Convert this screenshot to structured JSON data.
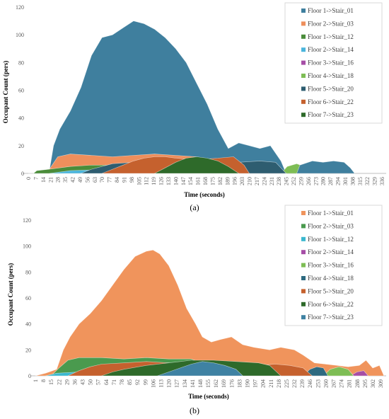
{
  "chart_data": [
    {
      "type": "area",
      "caption": "(a)",
      "xlabel": "Time (seconds)",
      "ylabel": "Occupant Count (pers)",
      "ylim": [
        0,
        120
      ],
      "yticks": [
        0,
        20,
        40,
        60,
        80,
        100,
        120
      ],
      "xlim": [
        0,
        340
      ],
      "xticks": [
        0,
        7,
        14,
        21,
        28,
        35,
        42,
        49,
        56,
        63,
        70,
        77,
        84,
        91,
        98,
        105,
        112,
        119,
        126,
        133,
        140,
        147,
        154,
        161,
        168,
        175,
        182,
        189,
        196,
        203,
        210,
        217,
        224,
        231,
        238,
        245,
        252,
        259,
        266,
        273,
        280,
        287,
        294,
        301,
        308,
        315,
        322,
        329,
        336
      ],
      "legend_position": "top-right",
      "series": [
        {
          "name": "Floor 1->Stair_01",
          "color": "#3f7f9e",
          "points": [
            [
              0,
              0
            ],
            [
              14,
              0
            ],
            [
              20,
              2
            ],
            [
              24,
              20
            ],
            [
              30,
              32
            ],
            [
              40,
              45
            ],
            [
              50,
              62
            ],
            [
              60,
              85
            ],
            [
              70,
              98
            ],
            [
              80,
              100
            ],
            [
              90,
              105
            ],
            [
              100,
              110
            ],
            [
              110,
              108
            ],
            [
              120,
              104
            ],
            [
              130,
              98
            ],
            [
              140,
              90
            ],
            [
              150,
              80
            ],
            [
              160,
              65
            ],
            [
              170,
              50
            ],
            [
              180,
              32
            ],
            [
              190,
              18
            ],
            [
              200,
              22
            ],
            [
              210,
              20
            ],
            [
              220,
              18
            ],
            [
              230,
              20
            ],
            [
              240,
              9
            ],
            [
              245,
              0
            ]
          ]
        },
        {
          "name": "Floor 2->Stair_03",
          "color": "#ee8f5c",
          "points": [
            [
              10,
              0
            ],
            [
              20,
              3
            ],
            [
              28,
              12
            ],
            [
              40,
              14
            ],
            [
              60,
              13
            ],
            [
              80,
              12
            ],
            [
              100,
              13
            ],
            [
              120,
              14
            ],
            [
              140,
              13
            ],
            [
              160,
              12
            ],
            [
              175,
              10
            ],
            [
              185,
              6
            ],
            [
              190,
              0
            ]
          ]
        },
        {
          "name": "Floor 1->Stair_12",
          "color": "#4a8c3a",
          "points": [
            [
              5,
              0
            ],
            [
              8,
              2
            ],
            [
              20,
              3
            ],
            [
              40,
              5
            ],
            [
              60,
              6
            ],
            [
              80,
              6
            ],
            [
              100,
              7
            ],
            [
              120,
              6
            ],
            [
              140,
              6
            ],
            [
              160,
              5
            ],
            [
              175,
              3
            ],
            [
              185,
              0
            ]
          ]
        },
        {
          "name": "Floor 2->Stair_14",
          "color": "#4bb5dc",
          "points": [
            [
              20,
              0
            ],
            [
              40,
              2
            ],
            [
              80,
              3
            ],
            [
              120,
              3
            ],
            [
              160,
              3
            ],
            [
              200,
              2
            ],
            [
              220,
              0
            ]
          ]
        },
        {
          "name": "Floor  3->Stair_16",
          "color": "#a64ea6",
          "points": [
            [
              255,
              0
            ],
            [
              262,
              4
            ],
            [
              270,
              8
            ],
            [
              278,
              6
            ],
            [
              284,
              0
            ]
          ]
        },
        {
          "name": "Floor 4->Stair_18",
          "color": "#7ebd55",
          "points": [
            [
              240,
              0
            ],
            [
              246,
              5
            ],
            [
              255,
              7
            ],
            [
              262,
              5
            ],
            [
              266,
              0
            ]
          ]
        },
        {
          "name": "Floor 5->Stair_20",
          "color": "#2e5d70",
          "points": [
            [
              50,
              0
            ],
            [
              60,
              3
            ],
            [
              70,
              5
            ],
            [
              80,
              7
            ],
            [
              100,
              8
            ],
            [
              140,
              9
            ],
            [
              180,
              9
            ],
            [
              200,
              8
            ],
            [
              220,
              9
            ],
            [
              235,
              8
            ],
            [
              245,
              0
            ]
          ]
        },
        {
          "name": "Floor 6->Stair_22",
          "color": "#c5612e",
          "points": [
            [
              70,
              0
            ],
            [
              80,
              3
            ],
            [
              90,
              6
            ],
            [
              100,
              9
            ],
            [
              110,
              11
            ],
            [
              120,
              12
            ],
            [
              130,
              12
            ],
            [
              140,
              11
            ],
            [
              160,
              10
            ],
            [
              180,
              11
            ],
            [
              195,
              12
            ],
            [
              205,
              6
            ],
            [
              210,
              0
            ]
          ]
        },
        {
          "name": "Floor 7->Stair_23",
          "color": "#2e6a2a",
          "points": [
            [
              120,
              0
            ],
            [
              130,
              4
            ],
            [
              140,
              8
            ],
            [
              150,
              11
            ],
            [
              160,
              12
            ],
            [
              170,
              11
            ],
            [
              180,
              9
            ],
            [
              190,
              5
            ],
            [
              200,
              0
            ]
          ]
        },
        {
          "name": "",
          "color": "#3f7f9e",
          "points": [
            [
              255,
              0
            ],
            [
              258,
              6
            ],
            [
              270,
              9
            ],
            [
              280,
              8
            ],
            [
              290,
              9
            ],
            [
              300,
              8
            ],
            [
              306,
              4
            ],
            [
              310,
              0
            ]
          ]
        }
      ]
    },
    {
      "type": "area",
      "caption": "(b)",
      "xlabel": "Time (seconds)",
      "ylabel": "Occupant Count (pers)",
      "ylim": [
        0,
        120
      ],
      "yticks": [
        0,
        20,
        40,
        60,
        80,
        100,
        120
      ],
      "xlim": [
        1,
        314
      ],
      "xticks": [
        1,
        8,
        15,
        22,
        29,
        36,
        43,
        50,
        57,
        64,
        71,
        78,
        85,
        92,
        99,
        106,
        113,
        120,
        127,
        134,
        141,
        148,
        155,
        162,
        169,
        176,
        183,
        190,
        197,
        204,
        211,
        218,
        225,
        232,
        239,
        246,
        253,
        260,
        267,
        274,
        281,
        288,
        295,
        302,
        309
      ],
      "legend_position": "top-right",
      "series": [
        {
          "name": "Floor 1->Stair_01",
          "color": "#f0945c",
          "points": [
            [
              1,
              0
            ],
            [
              10,
              2
            ],
            [
              20,
              5
            ],
            [
              26,
              20
            ],
            [
              32,
              30
            ],
            [
              40,
              40
            ],
            [
              50,
              48
            ],
            [
              60,
              58
            ],
            [
              70,
              70
            ],
            [
              80,
              82
            ],
            [
              90,
              92
            ],
            [
              100,
              96
            ],
            [
              106,
              97
            ],
            [
              112,
              94
            ],
            [
              120,
              85
            ],
            [
              128,
              70
            ],
            [
              136,
              52
            ],
            [
              144,
              40
            ],
            [
              150,
              30
            ],
            [
              158,
              26
            ],
            [
              166,
              28
            ],
            [
              176,
              30
            ],
            [
              186,
              24
            ],
            [
              196,
              22
            ],
            [
              210,
              20
            ],
            [
              220,
              22
            ],
            [
              232,
              20
            ],
            [
              240,
              16
            ],
            [
              250,
              10
            ],
            [
              260,
              9
            ],
            [
              270,
              8
            ],
            [
              280,
              7
            ],
            [
              290,
              8
            ],
            [
              296,
              12
            ],
            [
              302,
              6
            ],
            [
              308,
              8
            ],
            [
              312,
              0
            ]
          ]
        },
        {
          "name": "Floor 2->Stair_03",
          "color": "#4a9a4e",
          "points": [
            [
              15,
              0
            ],
            [
              22,
              6
            ],
            [
              30,
              12
            ],
            [
              40,
              14
            ],
            [
              60,
              14
            ],
            [
              80,
              13
            ],
            [
              100,
              14
            ],
            [
              120,
              13
            ],
            [
              140,
              13
            ],
            [
              150,
              10
            ],
            [
              158,
              0
            ]
          ]
        },
        {
          "name": "Floor 1->Stair_12",
          "color": "#3bb8cf",
          "points": [
            [
              10,
              0
            ],
            [
              20,
              2
            ],
            [
              40,
              3
            ],
            [
              80,
              3
            ],
            [
              120,
              3
            ],
            [
              150,
              2
            ],
            [
              170,
              0
            ]
          ]
        },
        {
          "name": "Floor 2->Stair_14",
          "color": "#a64ea6",
          "points": [
            [
              282,
              0
            ],
            [
              288,
              3
            ],
            [
              294,
              4
            ],
            [
              298,
              0
            ]
          ]
        },
        {
          "name": "Floor  3->Stair_16",
          "color": "#7ebd55",
          "points": [
            [
              258,
              0
            ],
            [
              264,
              5
            ],
            [
              272,
              7
            ],
            [
              280,
              5
            ],
            [
              285,
              0
            ]
          ]
        },
        {
          "name": "Floor 4->Stair_18",
          "color": "#2e6a80",
          "points": [
            [
              240,
              0
            ],
            [
              246,
              5
            ],
            [
              252,
              7
            ],
            [
              258,
              6
            ],
            [
              262,
              0
            ]
          ]
        },
        {
          "name": "Floor 5->Stair_20",
          "color": "#c5612e",
          "points": [
            [
              30,
              0
            ],
            [
              40,
              4
            ],
            [
              50,
              7
            ],
            [
              60,
              9
            ],
            [
              80,
              10
            ],
            [
              100,
              11
            ],
            [
              120,
              10
            ],
            [
              140,
              9
            ],
            [
              160,
              10
            ],
            [
              180,
              9
            ],
            [
              200,
              8
            ],
            [
              215,
              9
            ],
            [
              228,
              8
            ],
            [
              240,
              6
            ],
            [
              248,
              0
            ]
          ]
        },
        {
          "name": "Floor 6->Stair_22",
          "color": "#2e6a2a",
          "points": [
            [
              60,
              0
            ],
            [
              70,
              3
            ],
            [
              80,
              5
            ],
            [
              100,
              8
            ],
            [
              120,
              10
            ],
            [
              140,
              12
            ],
            [
              160,
              12
            ],
            [
              180,
              11
            ],
            [
              200,
              10
            ],
            [
              210,
              8
            ],
            [
              220,
              0
            ]
          ]
        },
        {
          "name": "Floor 7->Stair_23",
          "color": "#3f82a3",
          "points": [
            [
              110,
              0
            ],
            [
              120,
              3
            ],
            [
              130,
              6
            ],
            [
              140,
              9
            ],
            [
              150,
              11
            ],
            [
              160,
              10
            ],
            [
              170,
              8
            ],
            [
              180,
              5
            ],
            [
              186,
              0
            ]
          ]
        }
      ]
    }
  ]
}
